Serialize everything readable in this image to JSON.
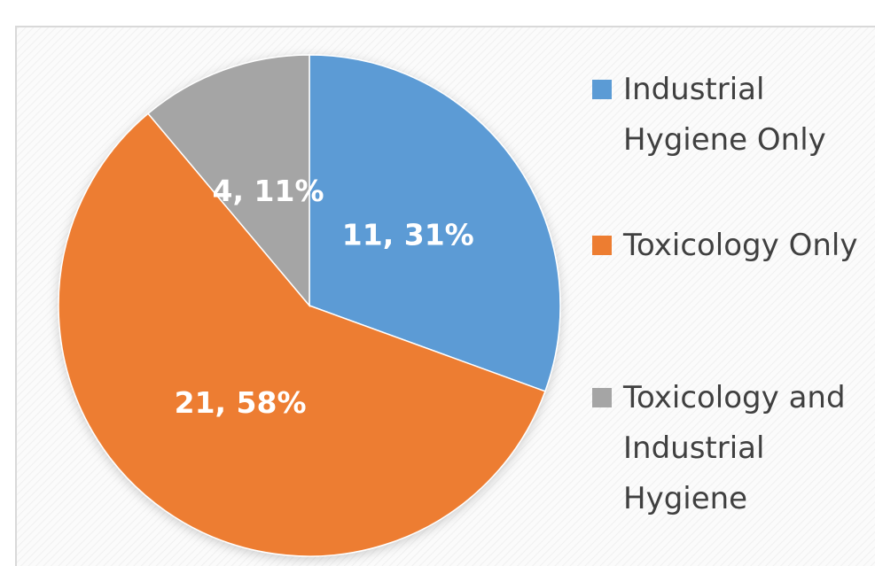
{
  "chart_data": {
    "type": "pie",
    "categories": [
      "Industrial Hygiene Only",
      "Toxicology Only",
      "Toxicology and Industrial Hygiene"
    ],
    "values": [
      11,
      21,
      4
    ],
    "value_labels": [
      "11, 31%",
      "21, 58%",
      "4, 11%"
    ],
    "colors": [
      "#5b9bd5",
      "#ed7d31",
      "#a5a5a5"
    ],
    "legend": "right"
  }
}
